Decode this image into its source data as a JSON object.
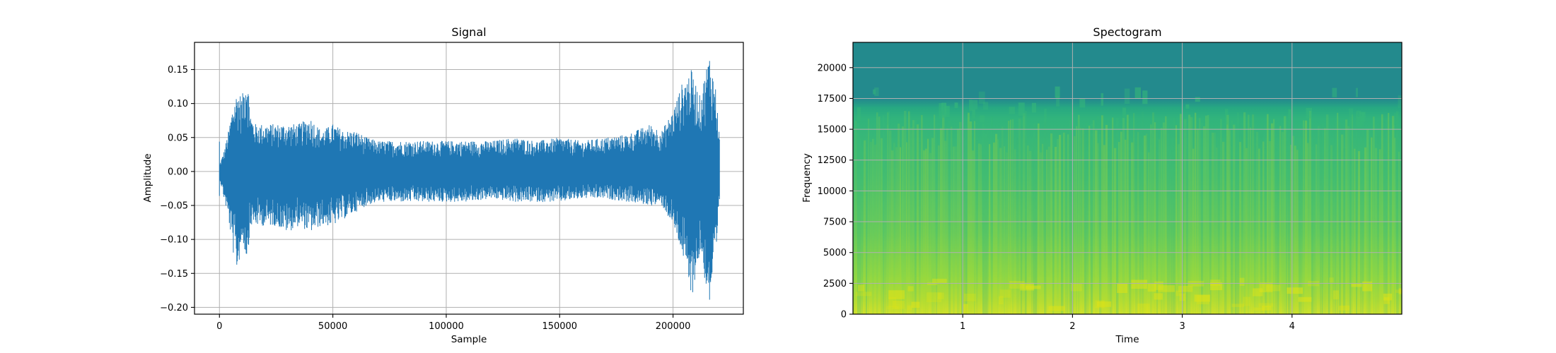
{
  "chart_data": [
    {
      "type": "line",
      "title": "Signal",
      "xlabel": "Sample",
      "ylabel": "Amplitude",
      "xlim": [
        -11000,
        231000
      ],
      "ylim": [
        -0.21,
        0.19
      ],
      "xticks": [
        0,
        50000,
        100000,
        150000,
        200000
      ],
      "xtick_labels": [
        "0",
        "50000",
        "100000",
        "150000",
        "200000"
      ],
      "yticks": [
        0.15,
        0.1,
        0.05,
        0.0,
        -0.05,
        -0.1,
        -0.15,
        -0.2
      ],
      "ytick_labels": [
        "0.15",
        "0.10",
        "0.05",
        "0.00",
        "−0.05",
        "−0.10",
        "−0.15",
        "−0.20"
      ],
      "grid": true,
      "color": "#1f77b4",
      "series": [
        {
          "x": [
            0,
            2000,
            4000,
            6000,
            8000,
            10000,
            12000,
            14000,
            16000,
            20000,
            25000,
            30000,
            35000,
            40000,
            45000,
            50000,
            55000,
            60000,
            65000,
            70000,
            80000,
            90000,
            100000,
            110000,
            120000,
            130000,
            140000,
            150000,
            160000,
            170000,
            180000,
            190000,
            195000,
            200000,
            204000,
            208000,
            212000,
            216000,
            219000,
            220500
          ],
          "upper": [
            0.01,
            0.03,
            0.06,
            0.1,
            0.12,
            0.11,
            0.15,
            0.08,
            0.07,
            0.07,
            0.07,
            0.07,
            0.07,
            0.08,
            0.06,
            0.07,
            0.06,
            0.06,
            0.05,
            0.045,
            0.045,
            0.045,
            0.045,
            0.045,
            0.045,
            0.05,
            0.045,
            0.05,
            0.045,
            0.05,
            0.055,
            0.07,
            0.06,
            0.09,
            0.13,
            0.15,
            0.11,
            0.175,
            0.12,
            0.05
          ],
          "lower": [
            -0.01,
            -0.04,
            -0.07,
            -0.12,
            -0.15,
            -0.1,
            -0.13,
            -0.08,
            -0.08,
            -0.08,
            -0.08,
            -0.09,
            -0.08,
            -0.09,
            -0.08,
            -0.08,
            -0.07,
            -0.06,
            -0.05,
            -0.045,
            -0.045,
            -0.045,
            -0.045,
            -0.045,
            -0.04,
            -0.045,
            -0.045,
            -0.045,
            -0.04,
            -0.04,
            -0.045,
            -0.05,
            -0.05,
            -0.08,
            -0.12,
            -0.19,
            -0.12,
            -0.2,
            -0.13,
            -0.05
          ]
        }
      ]
    },
    {
      "type": "heatmap",
      "title": "Spectogram",
      "xlabel": "Time",
      "ylabel": "Frequency",
      "xlim": [
        0,
        5
      ],
      "ylim": [
        0,
        22050
      ],
      "xticks": [
        1,
        2,
        3,
        4
      ],
      "xtick_labels": [
        "1",
        "2",
        "3",
        "4"
      ],
      "yticks": [
        0,
        2500,
        5000,
        7500,
        10000,
        12500,
        15000,
        17500,
        20000
      ],
      "ytick_labels": [
        "0",
        "2500",
        "5000",
        "7500",
        "10000",
        "12500",
        "15000",
        "17500",
        "20000"
      ],
      "grid": true,
      "colormap": "viridis",
      "bands": [
        {
          "from": 0,
          "to": 1000,
          "color": "#c5df2b"
        },
        {
          "from": 1000,
          "to": 3000,
          "color": "#9dd93c"
        },
        {
          "from": 3000,
          "to": 6000,
          "color": "#6ecc57"
        },
        {
          "from": 6000,
          "to": 10000,
          "color": "#4dc36b"
        },
        {
          "from": 10000,
          "to": 16000,
          "color": "#32b67a"
        },
        {
          "from": 16000,
          "to": 17500,
          "color": "#22a784"
        },
        {
          "from": 17500,
          "to": 22050,
          "color": "#238a8d"
        }
      ]
    }
  ]
}
